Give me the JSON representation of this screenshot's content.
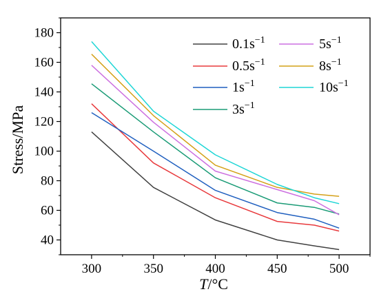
{
  "chart_data": {
    "type": "line",
    "x": [
      300,
      350,
      400,
      450,
      480,
      500
    ],
    "xlabel_italic": "T",
    "xlabel_rest": "/°C",
    "ylabel": "Stress/MPa",
    "xlim": [
      275,
      525
    ],
    "ylim": [
      30,
      190
    ],
    "xticks": [
      "300",
      "350",
      "400",
      "450",
      "500"
    ],
    "yticks": [
      "40",
      "60",
      "80",
      "100",
      "120",
      "140",
      "160",
      "180"
    ],
    "legend_position": "top-right",
    "series": [
      {
        "name": "0.1",
        "unit_exp": "s−1",
        "color": "#404040",
        "values": [
          113,
          75.5,
          53.5,
          40,
          36,
          33.5
        ]
      },
      {
        "name": "0.5",
        "unit_exp": "s−1",
        "color": "#e8393c",
        "values": [
          132,
          92,
          68.5,
          52.5,
          50,
          46
        ]
      },
      {
        "name": "1",
        "unit_exp": "s−1",
        "color": "#1f5fbf",
        "values": [
          126,
          100,
          73.5,
          58.5,
          54,
          48
        ]
      },
      {
        "name": "3",
        "unit_exp": "s−1",
        "color": "#1a9b76",
        "values": [
          145.5,
          113,
          82,
          65,
          62,
          57.5
        ]
      },
      {
        "name": "5",
        "unit_exp": "s−1",
        "color": "#cc6fe0",
        "values": [
          158,
          119.5,
          86.5,
          74,
          66.5,
          57
        ]
      },
      {
        "name": "8",
        "unit_exp": "s−1",
        "color": "#d4a017",
        "values": [
          165.5,
          124,
          90.5,
          75.5,
          71,
          69.5
        ]
      },
      {
        "name": "10",
        "unit_exp": "s−1",
        "color": "#1ed6d6",
        "values": [
          174,
          127,
          97.5,
          77.5,
          68.5,
          64.5
        ]
      }
    ]
  }
}
